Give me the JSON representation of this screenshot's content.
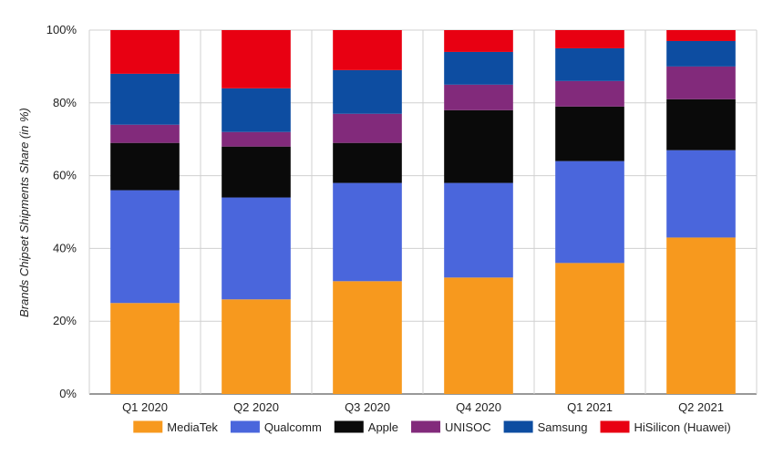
{
  "chart_data": {
    "type": "bar",
    "stacked": true,
    "title": "",
    "xlabel": "",
    "ylabel": "Brands Chipset Shipments Share (in %)",
    "ylim": [
      0,
      100
    ],
    "yticks": [
      0,
      20,
      40,
      60,
      80,
      100
    ],
    "ytick_labels": [
      "0%",
      "20%",
      "40%",
      "60%",
      "80%",
      "100%"
    ],
    "grid": true,
    "legend_position": "bottom",
    "categories": [
      "Q1 2020",
      "Q2 2020",
      "Q3 2020",
      "Q4 2020",
      "Q1 2021",
      "Q2 2021"
    ],
    "series": [
      {
        "name": "MediaTek",
        "color": "#f7991e",
        "values": [
          25,
          26,
          31,
          32,
          36,
          43
        ]
      },
      {
        "name": "Qualcomm",
        "color": "#4a66dc",
        "values": [
          31,
          28,
          27,
          26,
          28,
          24
        ]
      },
      {
        "name": "Apple",
        "color": "#0a0a0a",
        "values": [
          13,
          14,
          11,
          20,
          15,
          14
        ]
      },
      {
        "name": "UNISOC",
        "color": "#822a7b",
        "values": [
          5,
          4,
          8,
          7,
          7,
          9
        ]
      },
      {
        "name": "Samsung",
        "color": "#0d4da1",
        "values": [
          14,
          12,
          12,
          9,
          9,
          7
        ]
      },
      {
        "name": "HiSilicon (Huawei)",
        "color": "#e80012",
        "values": [
          12,
          16,
          11,
          6,
          5,
          3
        ]
      }
    ]
  }
}
